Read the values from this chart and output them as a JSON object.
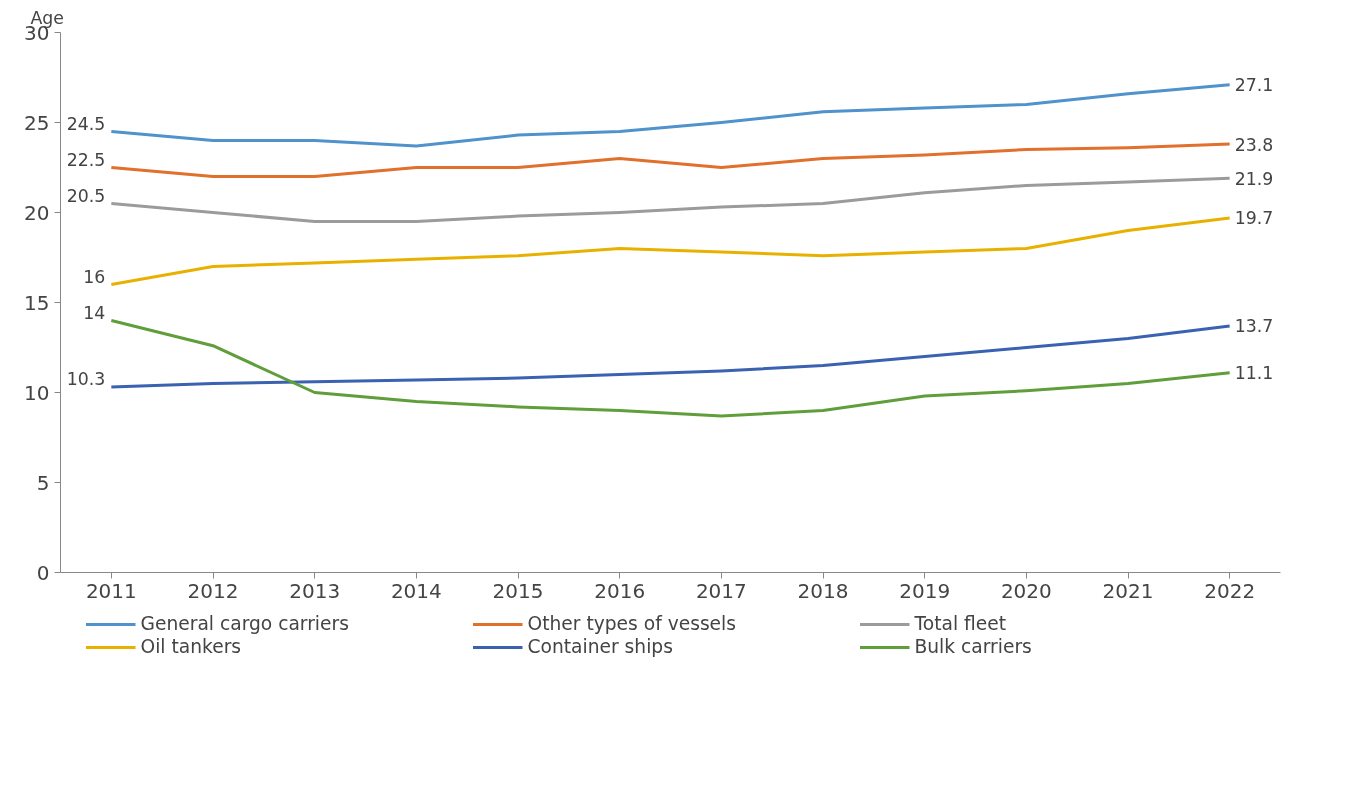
{
  "chart_data": {
    "type": "line",
    "ylabel": "Age",
    "categories": [
      "2011",
      "2012",
      "2013",
      "2014",
      "2015",
      "2016",
      "2017",
      "2018",
      "2019",
      "2020",
      "2021",
      "2022"
    ],
    "ylim": [
      0,
      30
    ],
    "yticks": [
      0,
      5,
      10,
      15,
      20,
      25,
      30
    ],
    "grid": false,
    "legend": "bottom",
    "marker": "none",
    "line_style": "solid",
    "series": [
      {
        "name": "General cargo carriers",
        "color": "#4f92cc",
        "values": [
          24.5,
          24.0,
          24.0,
          23.7,
          24.3,
          24.5,
          25.0,
          25.6,
          25.8,
          26.0,
          26.6,
          27.1
        ],
        "value_labels": [
          "24.5",
          null,
          null,
          null,
          null,
          null,
          null,
          null,
          null,
          null,
          null,
          "27.1"
        ]
      },
      {
        "name": "Other types of vessels",
        "color": "#e0702c",
        "values": [
          22.5,
          22.0,
          22.0,
          22.5,
          22.5,
          23.0,
          22.5,
          23.0,
          23.2,
          23.5,
          23.6,
          23.8
        ],
        "value_labels": [
          "22.5",
          null,
          null,
          null,
          null,
          null,
          null,
          null,
          null,
          null,
          null,
          "23.8"
        ]
      },
      {
        "name": "Total fleet",
        "color": "#9b9b9b",
        "values": [
          20.5,
          20.0,
          19.5,
          19.5,
          19.8,
          20.0,
          20.3,
          20.5,
          21.1,
          21.5,
          21.7,
          21.9
        ],
        "value_labels": [
          "20.5",
          null,
          null,
          null,
          null,
          null,
          null,
          null,
          null,
          null,
          null,
          "21.9"
        ]
      },
      {
        "name": "Oil tankers",
        "color": "#e8b100",
        "values": [
          16.0,
          17.0,
          17.2,
          17.4,
          17.6,
          18.0,
          17.8,
          17.6,
          17.8,
          18.0,
          19.0,
          19.7
        ],
        "value_labels": [
          "16",
          null,
          null,
          null,
          null,
          null,
          null,
          null,
          null,
          null,
          null,
          "19.7"
        ]
      },
      {
        "name": "Container ships",
        "color": "#3a62b0",
        "values": [
          10.3,
          10.5,
          10.6,
          10.7,
          10.8,
          11.0,
          11.2,
          11.5,
          12.0,
          12.5,
          13.0,
          13.7
        ],
        "value_labels": [
          "10.3",
          null,
          null,
          null,
          null,
          null,
          null,
          null,
          null,
          null,
          null,
          "13.7"
        ]
      },
      {
        "name": "Bulk carriers",
        "color": "#5f9e3a",
        "values": [
          14.0,
          12.6,
          10.0,
          9.5,
          9.2,
          9.0,
          8.7,
          9.0,
          9.8,
          10.1,
          10.5,
          11.1
        ],
        "value_labels": [
          "14",
          null,
          null,
          null,
          null,
          null,
          null,
          null,
          null,
          null,
          null,
          "11.1"
        ]
      }
    ]
  }
}
